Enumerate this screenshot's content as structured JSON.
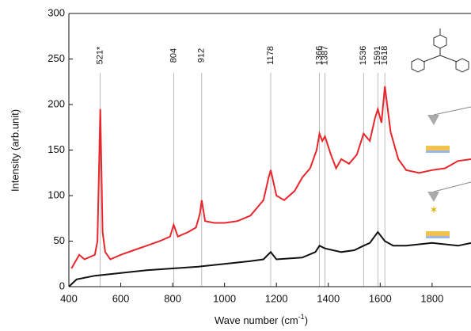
{
  "chart_data": {
    "type": "line",
    "y_label": "Intensity (arb.unit)",
    "x_label": {
      "text": "Wave number (cm",
      "sup": "-1",
      "tail": ")"
    },
    "xlim": [
      400,
      1950
    ],
    "ylim": [
      0,
      300
    ],
    "xticks": [
      400,
      600,
      800,
      1000,
      1200,
      1400,
      1600,
      1800
    ],
    "yticks": [
      0,
      50,
      100,
      150,
      200,
      250,
      300
    ],
    "annotations": [
      {
        "value": 521,
        "label": "521*"
      },
      804,
      912,
      1178,
      1366,
      1387,
      1536,
      1591,
      1618
    ],
    "series": [
      {
        "color": "#e8262b",
        "x": [
          410,
          440,
          460,
          500,
          510,
          521,
          530,
          540,
          560,
          600,
          650,
          700,
          750,
          790,
          804,
          820,
          860,
          890,
          905,
          912,
          925,
          960,
          1000,
          1050,
          1100,
          1150,
          1170,
          1178,
          1200,
          1230,
          1270,
          1300,
          1330,
          1355,
          1366,
          1377,
          1387,
          1410,
          1430,
          1450,
          1480,
          1510,
          1536,
          1560,
          1580,
          1591,
          1605,
          1618,
          1640,
          1670,
          1700,
          1750,
          1800,
          1850,
          1900,
          1950
        ],
        "values": [
          20,
          35,
          30,
          35,
          50,
          195,
          60,
          38,
          30,
          35,
          40,
          45,
          50,
          55,
          68,
          55,
          60,
          65,
          80,
          95,
          72,
          70,
          70,
          72,
          78,
          95,
          120,
          128,
          100,
          95,
          105,
          120,
          130,
          150,
          168,
          160,
          165,
          145,
          130,
          140,
          135,
          145,
          168,
          160,
          185,
          195,
          180,
          220,
          170,
          140,
          128,
          125,
          128,
          130,
          138,
          140
        ]
      },
      {
        "color": "#111111",
        "x": [
          400,
          430,
          500,
          600,
          700,
          800,
          900,
          1000,
          1100,
          1150,
          1178,
          1200,
          1300,
          1350,
          1366,
          1387,
          1450,
          1500,
          1536,
          1560,
          1591,
          1618,
          1650,
          1700,
          1800,
          1900,
          1950
        ],
        "values": [
          0,
          8,
          12,
          15,
          18,
          20,
          22,
          25,
          28,
          30,
          38,
          30,
          32,
          38,
          45,
          42,
          38,
          40,
          45,
          48,
          60,
          50,
          45,
          45,
          48,
          45,
          48
        ]
      }
    ]
  }
}
